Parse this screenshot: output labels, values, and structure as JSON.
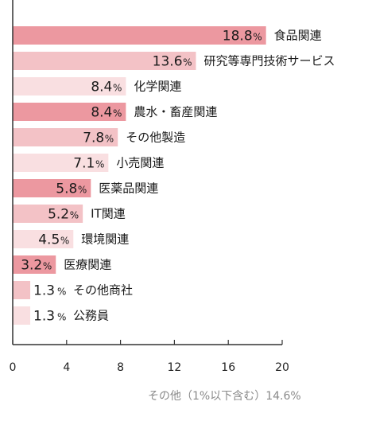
{
  "chart_data": {
    "type": "bar",
    "orientation": "horizontal",
    "categories": [
      "食品関連",
      "研究等専門技術サービス",
      "化学関連",
      "農水・畜産関連",
      "その他製造",
      "小売関連",
      "医薬品関連",
      "IT関連",
      "環境関連",
      "医療関連",
      "その他商社",
      "公務員"
    ],
    "values": [
      18.8,
      13.6,
      8.4,
      8.4,
      7.8,
      7.1,
      5.8,
      5.2,
      4.5,
      3.2,
      1.3,
      1.3
    ],
    "value_labels": [
      "18.8",
      "13.6",
      "8.4",
      "8.4",
      "7.8",
      "7.1",
      "5.8",
      "5.2",
      "4.5",
      "3.2",
      "1.3",
      "1.3"
    ],
    "unit": "%",
    "xlim": [
      0,
      20
    ],
    "xticks": [
      "0",
      "4",
      "8",
      "12",
      "16",
      "20"
    ],
    "xtick_values": [
      0,
      4,
      8,
      12,
      16,
      20
    ],
    "grid": false,
    "bar_colors": [
      "#ec98a0",
      "#f3c2c6",
      "#f9dfe1"
    ],
    "footnote": "その他（1%以下含む）14.6%"
  }
}
